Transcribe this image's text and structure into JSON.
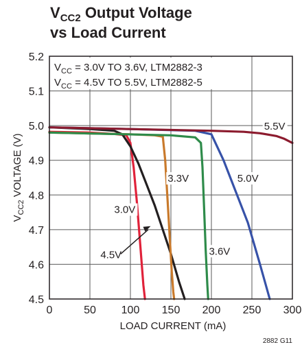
{
  "title": {
    "line1_pre": "V",
    "line1_sub": "CC2",
    "line1_post": " Output Voltage",
    "line2": "vs Load Current"
  },
  "chart_data": {
    "type": "line",
    "xlabel": "LOAD CURRENT (mA)",
    "ylabel_pre": "V",
    "ylabel_sub": "CC2",
    "ylabel_post": " VOLTAGE (V)",
    "xlim": [
      0,
      300
    ],
    "ylim": [
      4.5,
      5.2
    ],
    "xticks": [
      0,
      50,
      100,
      150,
      200,
      250,
      300
    ],
    "yticks": [
      "4.5",
      "4.6",
      "4.7",
      "4.8",
      "4.9",
      "5.0",
      "5.1",
      "5.2"
    ],
    "grid": true,
    "legend": [
      {
        "pre": "V",
        "sub": "CC",
        "post": " = 3.0V TO 3.6V, LTM2882-3"
      },
      {
        "pre": "V",
        "sub": "CC",
        "post": " = 4.5V TO 5.5V, LTM2882-5"
      }
    ],
    "series": [
      {
        "name": "3.0V",
        "color": "#e0223a",
        "x": [
          0,
          50,
          80,
          95,
          100,
          104,
          108,
          112,
          116,
          118
        ],
        "y": [
          4.982,
          4.98,
          4.976,
          4.972,
          4.95,
          4.88,
          4.78,
          4.66,
          4.54,
          4.5
        ]
      },
      {
        "name": "4.5V",
        "color": "#231f20",
        "x": [
          0,
          50,
          80,
          90,
          100,
          110,
          120,
          130,
          140,
          150,
          160,
          167
        ],
        "y": [
          4.995,
          4.99,
          4.985,
          4.975,
          4.94,
          4.89,
          4.83,
          4.77,
          4.7,
          4.63,
          4.55,
          4.5
        ]
      },
      {
        "name": "3.3V",
        "color": "#c97a2c",
        "x": [
          0,
          100,
          130,
          140,
          143,
          146,
          149,
          151,
          153,
          154
        ],
        "y": [
          4.98,
          4.975,
          4.972,
          4.968,
          4.9,
          4.78,
          4.66,
          4.58,
          4.52,
          4.5
        ]
      },
      {
        "name": "3.6V",
        "color": "#2e8b4a",
        "x": [
          0,
          150,
          180,
          187,
          189,
          191,
          193,
          195,
          196
        ],
        "y": [
          4.98,
          4.972,
          4.966,
          4.95,
          4.88,
          4.76,
          4.64,
          4.54,
          4.5
        ]
      },
      {
        "name": "5.0V",
        "color": "#3752a8",
        "x": [
          0,
          100,
          180,
          200,
          205,
          215,
          230,
          245,
          260,
          272
        ],
        "y": [
          4.995,
          4.99,
          4.985,
          4.975,
          4.95,
          4.9,
          4.81,
          4.72,
          4.6,
          4.5
        ]
      },
      {
        "name": "5.5V",
        "color": "#8c1b2e",
        "x": [
          0,
          100,
          200,
          240,
          260,
          280,
          290,
          300
        ],
        "y": [
          4.995,
          4.99,
          4.985,
          4.982,
          4.978,
          4.97,
          4.962,
          4.95
        ]
      }
    ],
    "series_labels": [
      {
        "text": "3.0V",
        "x": 80,
        "y": 4.75
      },
      {
        "text": "4.5V",
        "x": 63,
        "y": 4.62
      },
      {
        "text": "3.3V",
        "x": 146,
        "y": 4.84
      },
      {
        "text": "3.6V",
        "x": 197,
        "y": 4.63
      },
      {
        "text": "5.0V",
        "x": 232,
        "y": 4.84
      },
      {
        "text": "5.5V",
        "x": 265,
        "y": 4.99
      }
    ],
    "figure_code": "2882 G11"
  }
}
